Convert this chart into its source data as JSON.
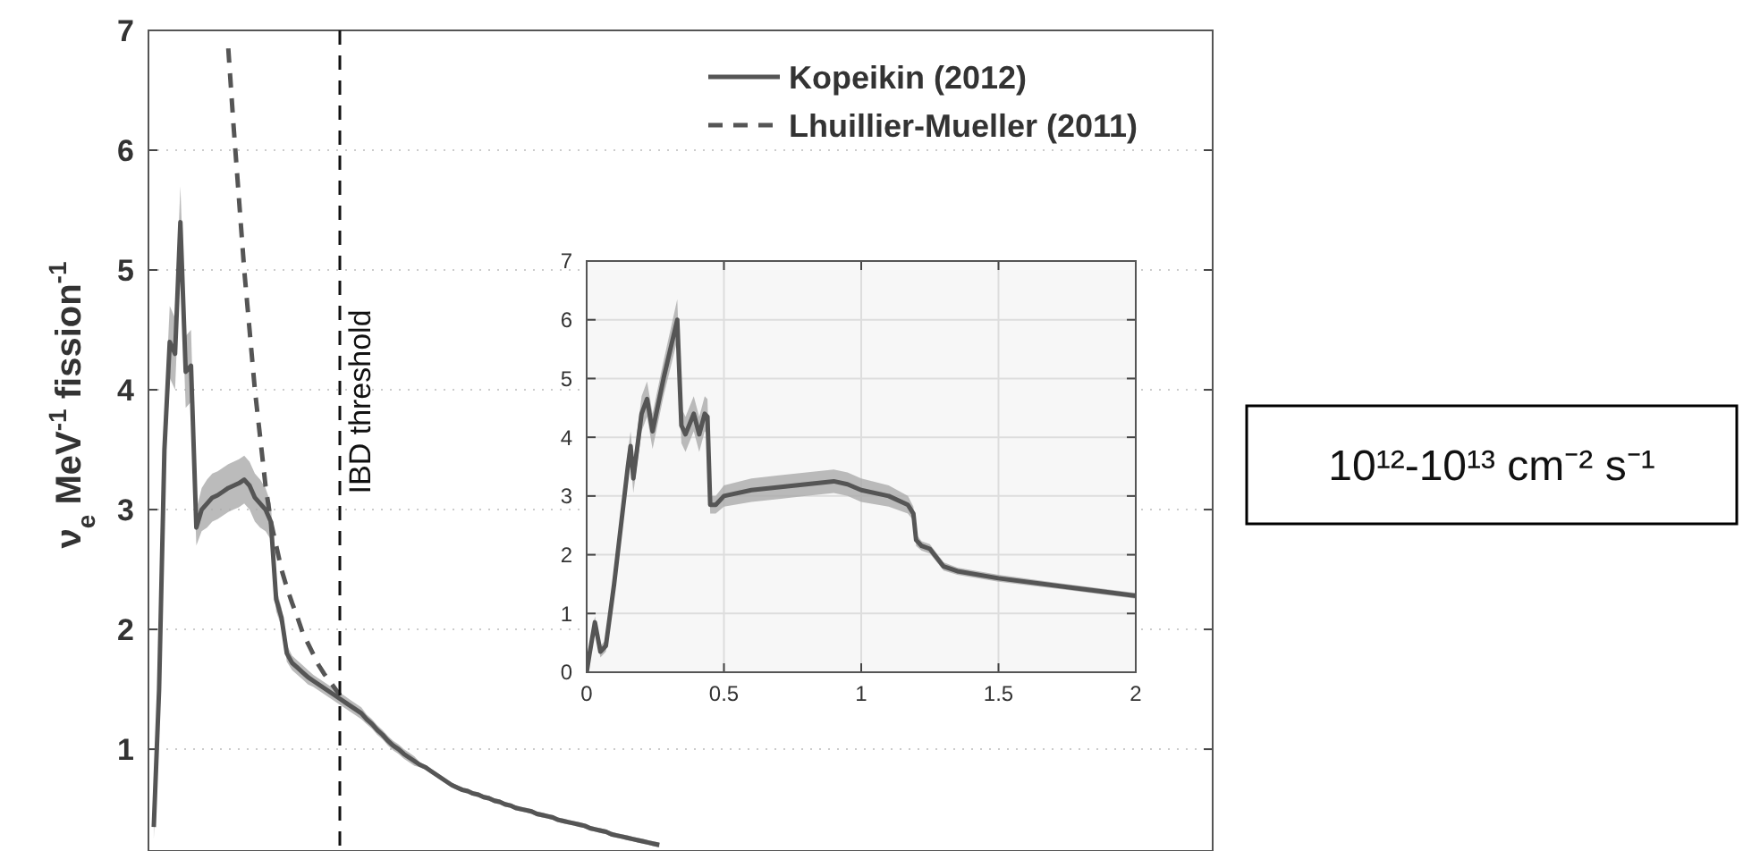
{
  "chart_data": [
    {
      "type": "line",
      "ylabel": "ν$_{e}$ MeV$^{-1}$ fission$^{-1}$",
      "ylim": [
        0.15,
        7
      ],
      "categories": [
        null,
        null,
        null,
        null,
        null,
        null,
        null,
        null,
        null,
        null,
        null,
        null,
        null,
        null,
        null,
        null,
        null,
        null,
        null,
        null,
        null,
        null,
        null,
        null,
        null,
        null,
        null,
        null,
        null,
        null,
        null,
        null,
        null,
        null,
        null,
        null,
        null,
        null,
        null,
        null,
        null,
        null,
        null,
        null,
        null,
        null,
        null,
        null,
        null,
        null,
        null,
        null,
        null,
        null,
        null,
        null,
        null,
        null,
        null,
        null,
        null,
        null,
        null,
        null,
        null,
        null,
        null,
        null,
        null,
        null,
        null,
        null,
        null,
        null,
        null,
        null,
        null,
        null,
        null,
        null,
        null,
        null,
        null,
        null,
        null,
        null,
        null,
        null,
        null,
        null,
        null,
        null,
        null,
        null,
        null,
        null,
        null,
        null,
        null,
        null,
        null,
        null,
        null,
        null,
        null,
        null,
        null,
        null,
        null,
        null,
        null,
        null,
        null,
        null,
        null,
        null,
        null,
        null,
        null,
        null,
        null,
        null,
        null,
        null,
        null,
        null,
        null,
        null,
        null,
        null,
        null,
        null,
        null,
        null,
        null,
        null,
        null,
        null,
        null,
        null,
        null,
        null,
        null,
        null,
        null,
        null,
        null,
        null,
        null,
        null,
        null,
        null,
        null,
        null,
        null,
        null,
        null,
        null,
        null,
        null,
        null,
        null,
        null,
        null,
        null,
        null,
        null,
        null,
        null,
        null,
        null,
        null,
        null,
        null,
        null,
        null,
        null,
        null,
        null,
        null,
        null,
        null,
        null,
        null,
        null,
        null,
        null,
        null,
        null,
        null,
        null,
        null,
        null,
        null,
        null,
        null,
        null,
        null,
        null,
        null,
        null
      ],
      "yticks": [
        1,
        2,
        3,
        4,
        5,
        6,
        7
      ],
      "tick_labels": "y",
      "grid": "y",
      "legend": "top right",
      "marker": "none",
      "annotations": [
        "IBD threshold",
        "10¹²-10¹³ cm⁻² s⁻¹"
      ],
      "series": [
        {
          "name": "Kopeikin (2012)",
          "color": "#555555",
          "line_style": "solid",
          "values": [
            null,
            0.35,
            1.5,
            3.5,
            4.4,
            4.3,
            5.4,
            4.15,
            4.2,
            2.85,
            3.0,
            3.05,
            3.1,
            3.12,
            3.15,
            3.18,
            3.2,
            3.22,
            3.25,
            3.2,
            3.1,
            3.05,
            3.0,
            2.9,
            2.25,
            2.1,
            1.8,
            1.72,
            1.68,
            1.64,
            1.6,
            1.57,
            1.54,
            1.51,
            1.48,
            1.45,
            1.42,
            1.39,
            1.36,
            1.33,
            1.3,
            1.25,
            1.21,
            1.16,
            1.12,
            1.07,
            1.03,
            1.0,
            0.96,
            0.93,
            0.9,
            0.87,
            0.85,
            0.82,
            0.79,
            0.76,
            0.73,
            0.7,
            0.68,
            0.66,
            0.65,
            0.63,
            0.62,
            0.6,
            0.59,
            0.57,
            0.56,
            0.54,
            0.53,
            0.51,
            0.5,
            0.49,
            0.48,
            0.46,
            0.45,
            0.44,
            0.43,
            0.41,
            0.4,
            0.39,
            0.38,
            0.37,
            0.36,
            0.34,
            0.33,
            0.32,
            0.31,
            0.29,
            0.28,
            0.27,
            0.26,
            0.25,
            0.24,
            0.23,
            0.22,
            0.21,
            0.2,
            null,
            null,
            null,
            null,
            null,
            null,
            null,
            null,
            null,
            null,
            null,
            null,
            null,
            null,
            null,
            null,
            null,
            null,
            null,
            null,
            null,
            null,
            null,
            null,
            null,
            null,
            null,
            null,
            null,
            null,
            null,
            null,
            null,
            null,
            null,
            null,
            null,
            null,
            null,
            null,
            null,
            null,
            null,
            null,
            null,
            null,
            null,
            null,
            null,
            null,
            null,
            null,
            null,
            null,
            null,
            null,
            null,
            null,
            null,
            null,
            null,
            null,
            null,
            null,
            null,
            null,
            null,
            null,
            null,
            null,
            null,
            null,
            null,
            null,
            null,
            null,
            null,
            null,
            null,
            null,
            null,
            null,
            null,
            null,
            null,
            null,
            null,
            null,
            null,
            null,
            null,
            null,
            null,
            null,
            null,
            null,
            null,
            null,
            null,
            null,
            null,
            null,
            null,
            null
          ],
          "lower": [
            null,
            0.25,
            1.35,
            3.25,
            4.1,
            4.0,
            5.1,
            3.85,
            3.9,
            2.7,
            2.82,
            2.85,
            2.9,
            2.92,
            2.95,
            2.98,
            3.0,
            3.02,
            3.05,
            3.0,
            2.9,
            2.85,
            2.82,
            2.75,
            2.15,
            2.02,
            1.73,
            1.66,
            1.62,
            1.58,
            1.54,
            1.52,
            1.49,
            1.46,
            1.43,
            1.4,
            1.37,
            1.34,
            1.31,
            1.28,
            1.25,
            1.21,
            1.17,
            1.12,
            1.08,
            1.03,
            0.99,
            0.96,
            0.92,
            0.89,
            0.86,
            0.85,
            0.83,
            0.8,
            0.77,
            0.74,
            0.71,
            0.68,
            0.66,
            0.64,
            0.63,
            0.61,
            0.6,
            0.58,
            0.57,
            0.55,
            0.54,
            0.52,
            0.51,
            0.49,
            0.48,
            0.47,
            0.46,
            0.44,
            0.43,
            0.42,
            0.41,
            0.39,
            0.38,
            0.37,
            0.36,
            0.35,
            0.34,
            0.32,
            0.31,
            0.3,
            0.29,
            0.27,
            0.26,
            0.25,
            0.24,
            0.23,
            0.22,
            0.21,
            0.2,
            0.19,
            0.18,
            null,
            null,
            null,
            null,
            null,
            null,
            null,
            null,
            null,
            null,
            null,
            null,
            null,
            null,
            null,
            null,
            null,
            null,
            null,
            null,
            null,
            null,
            null,
            null,
            null,
            null,
            null,
            null,
            null,
            null,
            null,
            null,
            null,
            null,
            null,
            null,
            null,
            null,
            null,
            null,
            null,
            null,
            null,
            null,
            null,
            null,
            null,
            null,
            null,
            null,
            null,
            null,
            null,
            null,
            null,
            null,
            null,
            null,
            null,
            null,
            null,
            null,
            null,
            null,
            null,
            null,
            null,
            null,
            null,
            null,
            null,
            null,
            null,
            null,
            null,
            null,
            null,
            null,
            null,
            null,
            null,
            null,
            null,
            null,
            null,
            null,
            null,
            null,
            null,
            null,
            null,
            null,
            null,
            null,
            null,
            null,
            null,
            null,
            null,
            null,
            null,
            null,
            null,
            null
          ],
          "upper": [
            null,
            0.45,
            1.65,
            3.75,
            4.7,
            4.6,
            5.7,
            4.45,
            4.5,
            3.0,
            3.18,
            3.25,
            3.3,
            3.32,
            3.35,
            3.38,
            3.4,
            3.42,
            3.45,
            3.4,
            3.3,
            3.25,
            3.18,
            3.05,
            2.35,
            2.18,
            1.87,
            1.78,
            1.74,
            1.7,
            1.66,
            1.62,
            1.59,
            1.56,
            1.53,
            1.5,
            1.47,
            1.44,
            1.41,
            1.38,
            1.35,
            1.29,
            1.25,
            1.2,
            1.16,
            1.11,
            1.07,
            1.04,
            1.0,
            0.97,
            0.94,
            0.89,
            0.87,
            0.84,
            0.81,
            0.78,
            0.75,
            0.72,
            0.7,
            0.68,
            0.67,
            0.65,
            0.64,
            0.62,
            0.61,
            0.59,
            0.58,
            0.56,
            0.55,
            0.53,
            0.52,
            0.51,
            0.5,
            0.48,
            0.47,
            0.46,
            0.45,
            0.43,
            0.42,
            0.41,
            0.4,
            0.39,
            0.38,
            0.36,
            0.35,
            0.34,
            0.33,
            0.31,
            0.3,
            0.29,
            0.28,
            0.27,
            0.26,
            0.25,
            0.24,
            0.23,
            0.22,
            null,
            null,
            null,
            null,
            null,
            null,
            null,
            null,
            null,
            null,
            null,
            null,
            null,
            null,
            null,
            null,
            null,
            null,
            null,
            null,
            null,
            null,
            null,
            null,
            null,
            null,
            null,
            null,
            null,
            null,
            null,
            null,
            null,
            null,
            null,
            null,
            null,
            null,
            null,
            null,
            null,
            null,
            null,
            null,
            null,
            null,
            null,
            null,
            null,
            null,
            null,
            null,
            null,
            null,
            null,
            null,
            null,
            null,
            null,
            null,
            null,
            null,
            null,
            null,
            null,
            null,
            null,
            null,
            null,
            null,
            null,
            null,
            null,
            null,
            null,
            null,
            null,
            null,
            null,
            null,
            null,
            null,
            null,
            null,
            null,
            null,
            null,
            null,
            null,
            null,
            null,
            null,
            null,
            null,
            null,
            null,
            null,
            null,
            null,
            null,
            null,
            null,
            null,
            null
          ]
        },
        {
          "name": "Lhuillier-Mueller (2011)",
          "color": "#555555",
          "line_style": "dashed",
          "values": [
            null,
            null,
            null,
            null,
            null,
            null,
            null,
            null,
            null,
            null,
            null,
            null,
            null,
            null,
            null,
            6.85,
            6.2,
            5.6,
            5.0,
            4.5,
            4.0,
            3.6,
            3.2,
            2.9,
            2.7,
            2.5,
            2.35,
            2.22,
            2.1,
            1.97,
            1.88,
            1.79,
            1.7,
            1.63,
            1.57,
            1.51,
            1.45,
            null,
            null,
            null,
            null,
            null,
            null,
            null,
            null,
            null,
            null,
            null,
            null,
            null,
            null,
            null,
            null,
            null,
            null,
            null,
            null,
            null,
            null,
            null,
            null,
            null,
            null,
            null,
            null,
            null,
            null,
            null,
            null,
            null,
            null,
            null,
            null,
            null,
            null,
            null,
            null,
            null,
            null,
            null,
            null,
            null,
            null,
            null,
            null,
            null,
            null,
            null,
            null,
            null,
            null,
            null,
            null,
            null,
            null,
            null,
            null,
            null,
            null,
            null,
            null,
            null,
            null,
            null,
            null,
            null,
            null,
            null,
            null,
            null,
            null,
            null,
            null,
            null,
            null,
            null,
            null,
            null,
            null,
            null,
            null,
            null,
            null,
            null,
            null,
            null,
            null,
            null,
            null,
            null,
            null,
            null,
            null,
            null,
            null,
            null,
            null,
            null,
            null,
            null,
            null,
            null,
            null,
            null,
            null,
            null,
            null,
            null,
            null,
            null,
            null,
            null,
            null,
            null,
            null,
            null,
            null,
            null,
            null,
            null,
            null,
            null,
            null,
            null,
            null,
            null,
            null,
            null,
            null,
            null,
            null,
            null,
            null,
            null,
            null,
            null,
            null,
            null,
            null,
            null,
            null,
            null,
            null,
            null,
            null,
            null,
            null,
            null,
            null,
            null,
            null,
            null,
            null,
            null,
            null,
            null,
            null,
            null,
            null,
            null,
            null
          ]
        }
      ]
    },
    {
      "type": "line",
      "xlim": [
        0,
        2
      ],
      "ylim": [
        0,
        7
      ],
      "xticks": [
        0,
        0.5,
        1,
        1.5,
        2
      ],
      "yticks": [
        0,
        1,
        2,
        3,
        4,
        5,
        6,
        7
      ],
      "grid": true,
      "marker": "none",
      "series": [
        {
          "color": "#555555",
          "line_style": "solid",
          "x": [
            0,
            0.01,
            0.03,
            0.05,
            0.07,
            0.1,
            0.15,
            0.16,
            0.17,
            0.2,
            0.22,
            0.24,
            0.28,
            0.33,
            0.345,
            0.36,
            0.39,
            0.41,
            0.43,
            0.44,
            0.45,
            0.47,
            0.5,
            0.6,
            0.7,
            0.8,
            0.9,
            0.95,
            1.0,
            1.1,
            1.17,
            1.19,
            1.2,
            1.22,
            1.25,
            1.3,
            1.35,
            1.5,
            1.75,
            2.0
          ],
          "values": [
            0,
            0.3,
            0.85,
            0.35,
            0.45,
            1.5,
            3.5,
            3.85,
            3.3,
            4.4,
            4.65,
            4.1,
            5.0,
            6.0,
            4.2,
            4.05,
            4.4,
            4.05,
            4.4,
            4.35,
            2.85,
            2.85,
            3.0,
            3.1,
            3.15,
            3.2,
            3.25,
            3.2,
            3.1,
            3.0,
            2.85,
            2.7,
            2.25,
            2.15,
            2.1,
            1.8,
            1.72,
            1.6,
            1.45,
            1.3
          ],
          "lower": [
            0,
            0.25,
            0.75,
            0.25,
            0.35,
            1.35,
            3.25,
            3.6,
            3.05,
            4.1,
            4.35,
            3.8,
            4.7,
            5.65,
            3.9,
            3.75,
            4.1,
            3.75,
            4.1,
            4.05,
            2.7,
            2.7,
            2.82,
            2.9,
            2.95,
            3.0,
            3.05,
            3.0,
            2.9,
            2.82,
            2.7,
            2.58,
            2.15,
            2.07,
            2.02,
            1.73,
            1.66,
            1.54,
            1.4,
            1.25
          ],
          "upper": [
            0.1,
            0.35,
            0.95,
            0.45,
            0.55,
            1.65,
            3.75,
            4.1,
            3.55,
            4.7,
            4.95,
            4.4,
            5.3,
            6.35,
            4.5,
            4.35,
            4.7,
            4.35,
            4.7,
            4.65,
            3.0,
            3.0,
            3.18,
            3.3,
            3.35,
            3.4,
            3.45,
            3.4,
            3.3,
            3.18,
            3.0,
            2.82,
            2.35,
            2.23,
            2.18,
            1.87,
            1.78,
            1.66,
            1.5,
            1.35
          ]
        }
      ]
    }
  ]
}
